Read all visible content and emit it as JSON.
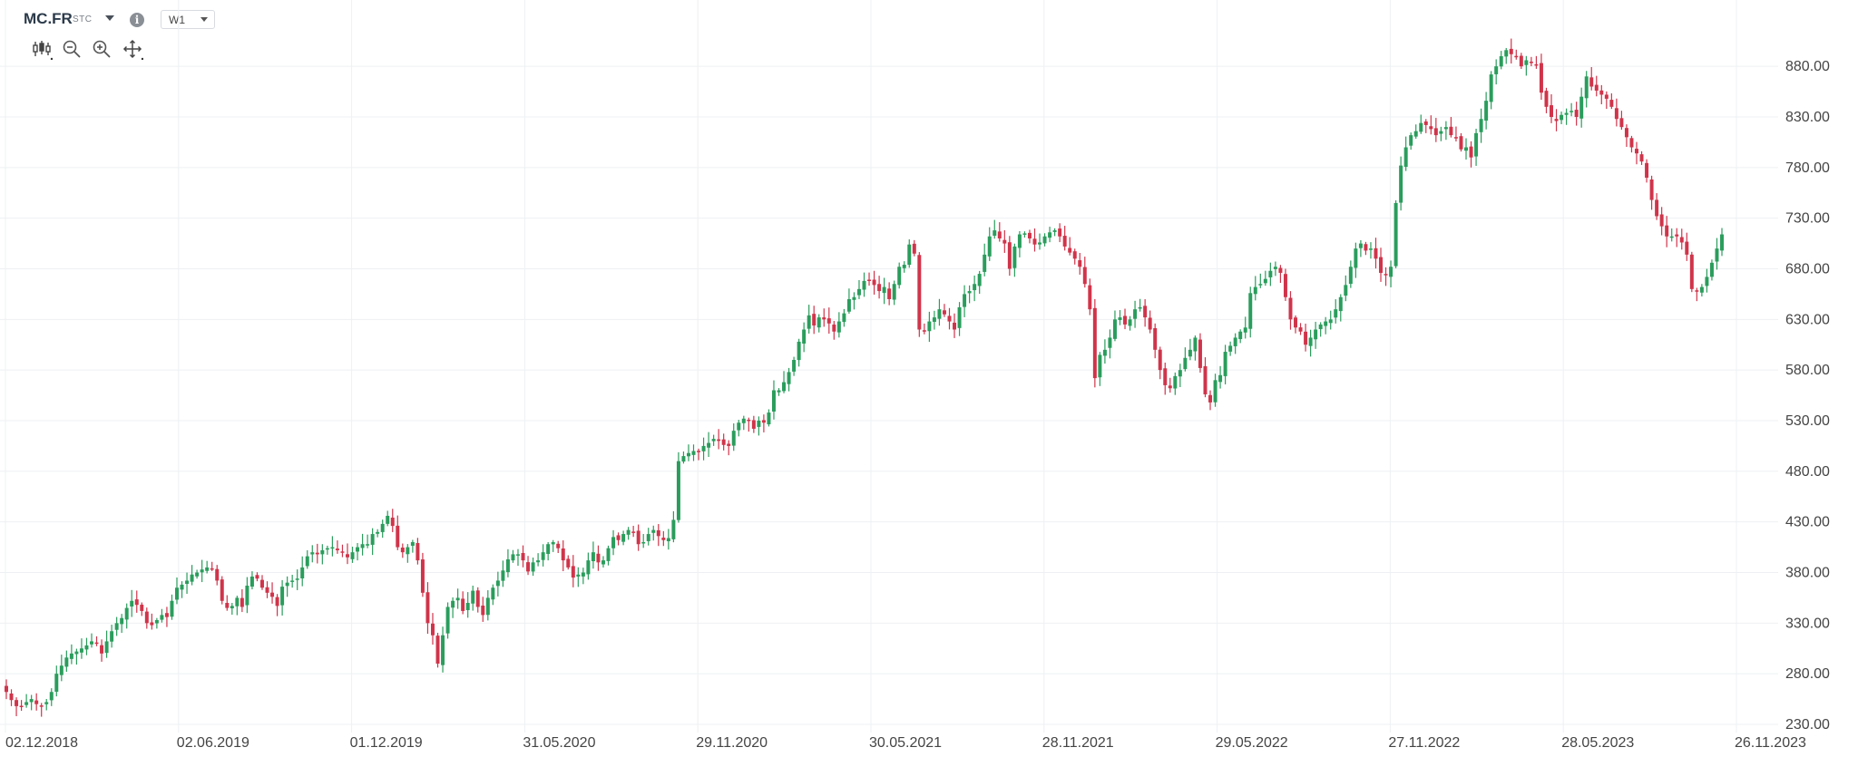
{
  "header": {
    "symbol": "MC.FR",
    "instrument_type": "STC",
    "timeframe": "W1",
    "tools": [
      "candlestick-icon",
      "zoom-out-icon",
      "zoom-in-icon",
      "move-icon"
    ]
  },
  "colors": {
    "up": "#2a9d5c",
    "down": "#d0344a",
    "grid": "#eef0f3",
    "text": "#444444"
  },
  "chart_data": {
    "type": "candlestick",
    "title": "",
    "xlabel": "",
    "ylabel": "",
    "ylim": [
      230,
      910
    ],
    "y_ticks": [
      "880.00",
      "830.00",
      "780.00",
      "730.00",
      "680.00",
      "630.00",
      "580.00",
      "530.00",
      "480.00",
      "430.00",
      "380.00",
      "330.00",
      "280.00",
      "230.00"
    ],
    "x_ticks": [
      "02.12.2018",
      "02.06.2019",
      "01.12.2019",
      "31.05.2020",
      "29.11.2020",
      "30.05.2021",
      "28.11.2021",
      "29.05.2022",
      "27.11.2022",
      "28.05.2023",
      "26.11.2023"
    ],
    "interval": "weekly",
    "closes": [
      262,
      254,
      248,
      248,
      252,
      255,
      250,
      248,
      252,
      262,
      280,
      288,
      296,
      300,
      302,
      305,
      308,
      312,
      310,
      300,
      312,
      322,
      330,
      335,
      345,
      352,
      348,
      342,
      330,
      328,
      333,
      338,
      336,
      352,
      365,
      368,
      372,
      378,
      380,
      383,
      385,
      384,
      372,
      352,
      345,
      347,
      355,
      346,
      367,
      376,
      374,
      365,
      360,
      356,
      347,
      366,
      370,
      372,
      374,
      385,
      396,
      400,
      398,
      402,
      404,
      405,
      402,
      400,
      395,
      400,
      405,
      408,
      408,
      418,
      420,
      428,
      436,
      426,
      405,
      400,
      405,
      410,
      392,
      360,
      330,
      318,
      290,
      318,
      346,
      352,
      355,
      342,
      350,
      362,
      346,
      338,
      355,
      365,
      372,
      382,
      393,
      398,
      398,
      392,
      381,
      390,
      392,
      400,
      408,
      410,
      404,
      392,
      385,
      375,
      378,
      380,
      392,
      400,
      390,
      392,
      404,
      415,
      412,
      418,
      422,
      420,
      408,
      410,
      418,
      422,
      416,
      412,
      414,
      432,
      490,
      495,
      498,
      500,
      500,
      505,
      508,
      512,
      510,
      506,
      505,
      520,
      528,
      532,
      530,
      522,
      530,
      528,
      538,
      560,
      560,
      568,
      578,
      590,
      608,
      620,
      634,
      624,
      632,
      630,
      626,
      618,
      628,
      636,
      650,
      652,
      660,
      668,
      668,
      664,
      658,
      662,
      650,
      665,
      682,
      684,
      704,
      695,
      620,
      618,
      628,
      632,
      640,
      635,
      628,
      620,
      642,
      655,
      658,
      665,
      675,
      694,
      712,
      718,
      710,
      705,
      680,
      702,
      714,
      715,
      710,
      704,
      706,
      712,
      716,
      718,
      712,
      702,
      696,
      690,
      682,
      665,
      640,
      572,
      595,
      600,
      612,
      630,
      632,
      625,
      630,
      640,
      642,
      632,
      620,
      600,
      580,
      565,
      562,
      574,
      580,
      592,
      600,
      612,
      582,
      556,
      548,
      570,
      575,
      598,
      604,
      612,
      618,
      622,
      656,
      662,
      665,
      670,
      678,
      682,
      676,
      652,
      630,
      622,
      618,
      605,
      612,
      620,
      625,
      628,
      630,
      640,
      652,
      664,
      682,
      700,
      705,
      698,
      700,
      690,
      676,
      674,
      682,
      745,
      782,
      800,
      812,
      816,
      824,
      822,
      818,
      812,
      816,
      820,
      812,
      810,
      798,
      800,
      790,
      814,
      828,
      846,
      872,
      880,
      890,
      896,
      892,
      890,
      880,
      886,
      884,
      882,
      854,
      840,
      830,
      826,
      832,
      834,
      836,
      830,
      850,
      870,
      860,
      856,
      852,
      848,
      840,
      828,
      820,
      810,
      800,
      794,
      786,
      770,
      748,
      732,
      722,
      712,
      712,
      712,
      706,
      694,
      660,
      658,
      662,
      672,
      686,
      700,
      714
    ]
  }
}
